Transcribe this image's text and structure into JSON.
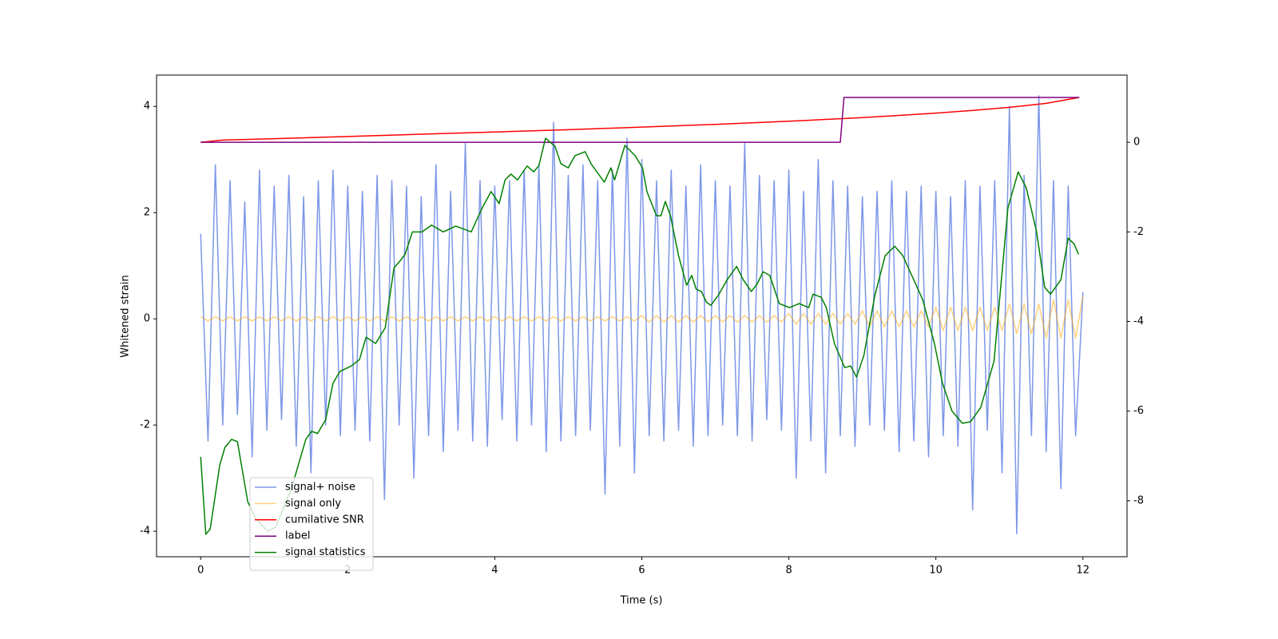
{
  "chart_data": {
    "type": "line",
    "xlabel": "Time (s)",
    "ylabel": "Whitened strain",
    "xlim": [
      -0.6,
      12.6
    ],
    "ylim": [
      -4.48,
      4.59
    ],
    "y2lim": [
      -9.25,
      1.5
    ],
    "xticks": [
      0,
      2,
      4,
      6,
      8,
      10,
      12
    ],
    "yticks": [
      -4,
      -2,
      0,
      2,
      4
    ],
    "y2ticks": [
      -8,
      -6,
      -4,
      -2,
      0
    ],
    "legend": "lower left",
    "x": [
      0,
      0.1,
      0.2,
      0.3,
      0.4,
      0.5,
      0.6,
      0.7,
      0.8,
      0.9,
      1,
      1.1,
      1.2,
      1.3,
      1.4,
      1.5,
      1.6,
      1.7,
      1.8,
      1.9,
      2,
      2.1,
      2.2,
      2.3,
      2.4,
      2.5,
      2.6,
      2.7,
      2.8,
      2.9,
      3,
      3.1,
      3.2,
      3.3,
      3.4,
      3.5,
      3.6,
      3.7,
      3.8,
      3.9,
      4,
      4.1,
      4.2,
      4.3,
      4.4,
      4.5,
      4.6,
      4.7,
      4.8,
      4.9,
      5,
      5.1,
      5.2,
      5.3,
      5.4,
      5.5,
      5.6,
      5.7,
      5.8,
      5.9,
      6,
      6.1,
      6.2,
      6.3,
      6.4,
      6.5,
      6.6,
      6.7,
      6.8,
      6.9,
      7,
      7.1,
      7.2,
      7.3,
      7.4,
      7.5,
      7.6,
      7.7,
      7.8,
      7.9,
      8,
      8.1,
      8.2,
      8.3,
      8.4,
      8.5,
      8.6,
      8.7,
      8.8,
      8.9,
      9,
      9.1,
      9.2,
      9.3,
      9.4,
      9.5,
      9.6,
      9.7,
      9.8,
      9.9,
      10,
      10.1,
      10.2,
      10.3,
      10.4,
      10.5,
      10.6,
      10.7,
      10.8,
      10.9,
      11,
      11.1,
      11.2,
      11.3,
      11.4,
      11.5,
      11.6,
      11.7,
      11.8,
      11.9,
      12
    ],
    "series": [
      {
        "name": "signal+ noise",
        "color": "#6f8ce6",
        "alpha": 0.9,
        "values": [
          1.6,
          -2.3,
          2.9,
          -2.0,
          2.6,
          -1.8,
          2.2,
          -2.6,
          2.8,
          -2.1,
          2.5,
          -1.9,
          2.7,
          -2.4,
          2.3,
          -2.9,
          2.6,
          -2.0,
          2.8,
          -2.2,
          2.5,
          -2.1,
          2.4,
          -2.3,
          2.7,
          -3.4,
          2.6,
          -2.0,
          2.5,
          -3.0,
          2.3,
          -2.2,
          2.9,
          -2.5,
          2.4,
          -2.1,
          3.3,
          -2.3,
          2.6,
          -2.4,
          2.5,
          -1.9,
          2.6,
          -2.3,
          2.8,
          -2.0,
          2.9,
          -2.5,
          3.7,
          -2.3,
          2.7,
          -2.2,
          2.9,
          -2.1,
          2.6,
          -3.3,
          2.8,
          -2.4,
          3.4,
          -2.9,
          3.0,
          -2.2,
          2.6,
          -2.3,
          2.8,
          -2.1,
          2.5,
          -2.4,
          2.9,
          -2.2,
          2.6,
          -2.0,
          2.5,
          -2.2,
          3.3,
          -2.3,
          2.7,
          -1.9,
          2.6,
          -2.1,
          2.8,
          -3.0,
          2.4,
          -2.3,
          3.0,
          -2.9,
          2.6,
          -2.2,
          2.5,
          -2.4,
          2.3,
          -2.0,
          2.4,
          -2.1,
          2.6,
          -2.5,
          2.4,
          -2.3,
          2.5,
          -2.6,
          2.4,
          -2.2,
          2.3,
          -2.4,
          2.6,
          -3.6,
          2.5,
          -2.1,
          2.6,
          -2.9,
          4.0,
          -4.05,
          2.7,
          -2.2,
          4.2,
          -2.5,
          2.6,
          -3.2,
          2.5,
          -2.2,
          0.5
        ]
      },
      {
        "name": "signal only",
        "color": "#ffa500",
        "alpha": 0.5,
        "values": [
          0.04,
          -0.04,
          0.04,
          -0.04,
          0.04,
          -0.04,
          0.04,
          -0.04,
          0.04,
          -0.04,
          0.04,
          -0.04,
          0.04,
          -0.04,
          0.04,
          -0.04,
          0.04,
          -0.04,
          0.04,
          -0.04,
          0.04,
          -0.04,
          0.04,
          -0.04,
          0.04,
          -0.04,
          0.04,
          -0.04,
          0.04,
          -0.04,
          0.04,
          -0.04,
          0.04,
          -0.04,
          0.04,
          -0.04,
          0.04,
          -0.04,
          0.04,
          -0.04,
          0.04,
          -0.04,
          0.04,
          -0.04,
          0.04,
          -0.04,
          0.04,
          -0.04,
          0.04,
          -0.04,
          0.04,
          -0.04,
          0.04,
          -0.04,
          0.04,
          -0.04,
          0.04,
          -0.04,
          0.04,
          -0.04,
          0.06,
          -0.06,
          0.06,
          -0.06,
          0.06,
          -0.06,
          0.06,
          -0.06,
          0.06,
          -0.06,
          0.06,
          -0.06,
          0.06,
          -0.06,
          0.06,
          -0.06,
          0.06,
          -0.06,
          0.06,
          -0.06,
          0.1,
          -0.1,
          0.1,
          -0.1,
          0.1,
          -0.1,
          0.1,
          -0.1,
          0.1,
          -0.1,
          0.15,
          -0.15,
          0.15,
          -0.15,
          0.15,
          -0.15,
          0.15,
          -0.15,
          0.15,
          -0.15,
          0.22,
          -0.22,
          0.22,
          -0.22,
          0.22,
          -0.22,
          0.22,
          -0.22,
          0.22,
          -0.22,
          0.28,
          -0.28,
          0.28,
          -0.28,
          0.28,
          -0.36,
          0.36,
          -0.36,
          0.36,
          -0.36,
          0.43
        ]
      },
      {
        "name": "cumilative SNR",
        "color": "#ff0000",
        "axis": "y2",
        "x": [
          0,
          0.3,
          1,
          2,
          3,
          4,
          5,
          6,
          7,
          8,
          9,
          10,
          10.5,
          11,
          11.5,
          11.95
        ],
        "values": [
          0,
          0.05,
          0.08,
          0.13,
          0.18,
          0.23,
          0.28,
          0.34,
          0.4,
          0.47,
          0.55,
          0.65,
          0.71,
          0.78,
          0.87,
          1.0
        ]
      },
      {
        "name": "label",
        "color": "#800080",
        "axis": "y2",
        "x": [
          0,
          8.7,
          8.75,
          11.95
        ],
        "values": [
          0,
          0,
          1,
          1
        ]
      },
      {
        "name": "signal statistics",
        "color": "#008000",
        "axis": "y2",
        "x": [
          0,
          0.07,
          0.13,
          0.26,
          0.33,
          0.42,
          0.5,
          0.64,
          0.75,
          0.91,
          1.02,
          1.24,
          1.43,
          1.51,
          1.59,
          1.7,
          1.8,
          1.89,
          2.05,
          2.16,
          2.25,
          2.38,
          2.51,
          2.63,
          2.7,
          2.78,
          2.88,
          3.01,
          3.14,
          3.3,
          3.47,
          3.68,
          3.84,
          3.95,
          4.06,
          4.14,
          4.22,
          4.31,
          4.44,
          4.53,
          4.6,
          4.69,
          4.82,
          4.9,
          5.0,
          5.09,
          5.23,
          5.31,
          5.49,
          5.58,
          5.63,
          5.77,
          5.91,
          6.01,
          6.07,
          6.2,
          6.26,
          6.32,
          6.39,
          6.5,
          6.61,
          6.68,
          6.74,
          6.81,
          6.88,
          6.94,
          7.05,
          7.16,
          7.29,
          7.38,
          7.49,
          7.57,
          7.65,
          7.74,
          7.87,
          8.01,
          8.14,
          8.27,
          8.33,
          8.44,
          8.51,
          8.62,
          8.76,
          8.84,
          8.92,
          9.02,
          9.17,
          9.31,
          9.44,
          9.55,
          9.65,
          9.82,
          9.98,
          10.09,
          10.22,
          10.36,
          10.47,
          10.61,
          10.79,
          10.98,
          11.12,
          11.23,
          11.37,
          11.48,
          11.56,
          11.7,
          11.8,
          11.88,
          11.94
        ],
        "values": [
          -7.02,
          -8.75,
          -8.63,
          -7.2,
          -6.81,
          -6.63,
          -6.68,
          -8.02,
          -8.4,
          -8.68,
          -8.59,
          -7.7,
          -6.63,
          -6.45,
          -6.5,
          -6.19,
          -5.38,
          -5.12,
          -4.99,
          -4.85,
          -4.35,
          -4.49,
          -4.14,
          -2.8,
          -2.67,
          -2.5,
          -2.0,
          -2.0,
          -1.85,
          -2.0,
          -1.87,
          -2.0,
          -1.43,
          -1.1,
          -1.37,
          -0.84,
          -0.71,
          -0.84,
          -0.53,
          -0.66,
          -0.52,
          0.09,
          -0.09,
          -0.48,
          -0.57,
          -0.3,
          -0.21,
          -0.48,
          -0.89,
          -0.57,
          -0.84,
          -0.07,
          -0.3,
          -0.57,
          -1.1,
          -1.64,
          -1.64,
          -1.32,
          -1.64,
          -2.53,
          -3.19,
          -2.97,
          -3.28,
          -3.33,
          -3.57,
          -3.64,
          -3.39,
          -3.07,
          -2.77,
          -3.07,
          -3.33,
          -3.16,
          -2.89,
          -2.97,
          -3.6,
          -3.69,
          -3.6,
          -3.69,
          -3.39,
          -3.46,
          -3.69,
          -4.49,
          -5.03,
          -4.99,
          -5.24,
          -4.76,
          -3.42,
          -2.53,
          -2.32,
          -2.53,
          -2.89,
          -3.51,
          -4.49,
          -5.38,
          -6.0,
          -6.27,
          -6.24,
          -5.92,
          -4.89,
          -1.46,
          -0.66,
          -1.02,
          -2.0,
          -3.24,
          -3.39,
          -3.07,
          -2.14,
          -2.27,
          -2.5
        ]
      }
    ]
  }
}
